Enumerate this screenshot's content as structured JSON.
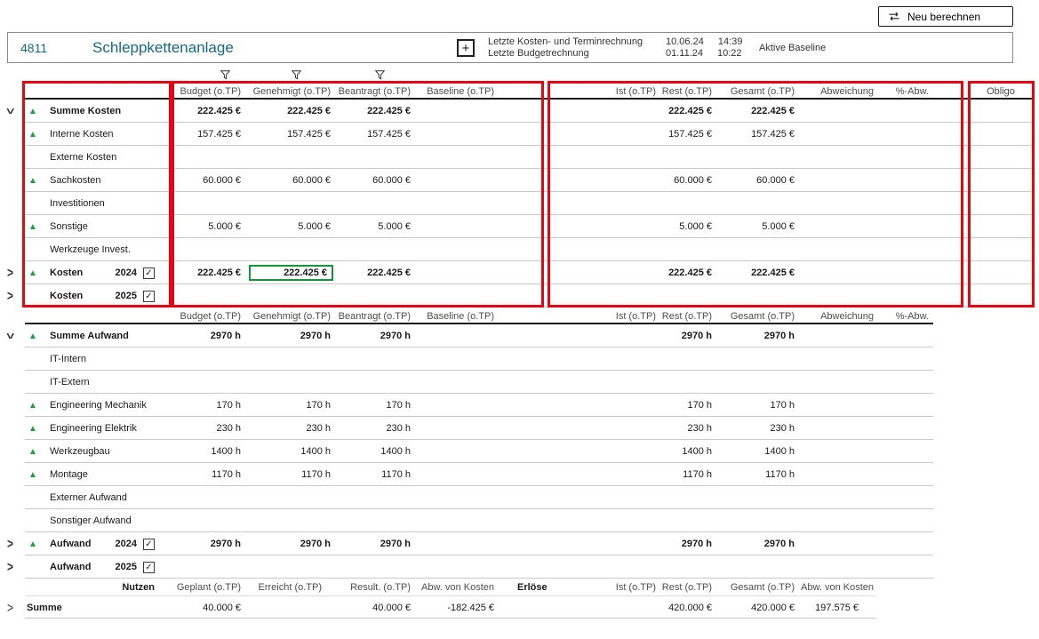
{
  "toolbar": {
    "recalc_button_label": "Neu berechnen"
  },
  "project": {
    "number": "4811",
    "title": "Schleppkettenanlage",
    "add_button": "+",
    "info": [
      {
        "label": "Letzte Kosten- und Terminrechnung",
        "date": "10.06.24",
        "time": "14:39"
      },
      {
        "label": "Letzte Budgetrechnung",
        "date": "01.11.24",
        "time": "10:22"
      }
    ],
    "baseline": "Aktive Baseline"
  },
  "icons": {
    "recalculate": "sync-arrows",
    "filter": "funnel",
    "trend_up": "▲",
    "chevron": ">",
    "checkmark": "✓",
    "add": "+"
  },
  "colors": {
    "title_teal": "#16697e",
    "trend_green": "#1ba13c",
    "annotation_red": "#e30613",
    "selection_green": "#18953a"
  },
  "kosten": {
    "headers": [
      "Budget (o.TP)",
      "Genehmigt (o.TP)",
      "Beantragt (o.TP)",
      "Baseline (o.TP)",
      "Ist (o.TP)",
      "Rest (o.TP)",
      "Gesamt (o.TP)",
      "Abweichung",
      "%-Abw.",
      "Obligo"
    ],
    "rows": [
      {
        "label": "Summe Kosten",
        "bold": true,
        "trend": true,
        "expand": "open",
        "values": [
          "222.425 €",
          "222.425 €",
          "222.425 €",
          "",
          "",
          "222.425 €",
          "222.425 €",
          "",
          "",
          ""
        ]
      },
      {
        "label": "Interne Kosten",
        "trend": true,
        "values": [
          "157.425 €",
          "157.425 €",
          "157.425 €",
          "",
          "",
          "157.425 €",
          "157.425 €",
          "",
          "",
          ""
        ]
      },
      {
        "label": "Externe Kosten"
      },
      {
        "label": "Sachkosten",
        "trend": true,
        "values": [
          "60.000 €",
          "60.000 €",
          "60.000 €",
          "",
          "",
          "60.000 €",
          "60.000 €",
          "",
          "",
          ""
        ]
      },
      {
        "label": "Investitionen"
      },
      {
        "label": "Sonstige",
        "trend": true,
        "values": [
          "5.000 €",
          "5.000 €",
          "5.000 €",
          "",
          "",
          "5.000 €",
          "5.000 €",
          "",
          "",
          ""
        ]
      },
      {
        "label": "Werkzeuge Invest."
      },
      {
        "label": "Kosten",
        "year": "2024",
        "checked": true,
        "bold": true,
        "trend": true,
        "expand": "closed",
        "selected": 1,
        "values": [
          "222.425 €",
          "222.425 €",
          "222.425 €",
          "",
          "",
          "222.425 €",
          "222.425 €",
          "",
          "",
          ""
        ]
      },
      {
        "label": "Kosten",
        "year": "2025",
        "checked": true,
        "bold": true,
        "expand": "closed"
      }
    ]
  },
  "aufwand": {
    "headers": [
      "Budget (o.TP)",
      "Genehmigt (o.TP)",
      "Beantragt (o.TP)",
      "Baseline (o.TP)",
      "Ist (o.TP)",
      "Rest (o.TP)",
      "Gesamt (o.TP)",
      "Abweichung",
      "%-Abw.",
      ""
    ],
    "rows": [
      {
        "label": "Summe Aufwand",
        "bold": true,
        "trend": true,
        "expand": "open",
        "values": [
          "2970 h",
          "2970 h",
          "2970 h",
          "",
          "",
          "2970 h",
          "2970 h",
          "",
          "",
          ""
        ]
      },
      {
        "label": "IT-Intern"
      },
      {
        "label": "IT-Extern"
      },
      {
        "label": "Engineering Mechanik",
        "trend": true,
        "values": [
          "170 h",
          "170 h",
          "170 h",
          "",
          "",
          "170 h",
          "170 h",
          "",
          "",
          ""
        ]
      },
      {
        "label": "Engineering Elektrik",
        "trend": true,
        "values": [
          "230 h",
          "230 h",
          "230 h",
          "",
          "",
          "230 h",
          "230 h",
          "",
          "",
          ""
        ]
      },
      {
        "label": "Werkzeugbau",
        "trend": true,
        "values": [
          "1400 h",
          "1400 h",
          "1400 h",
          "",
          "",
          "1400 h",
          "1400 h",
          "",
          "",
          ""
        ]
      },
      {
        "label": "Montage",
        "trend": true,
        "values": [
          "1170 h",
          "1170 h",
          "1170 h",
          "",
          "",
          "1170 h",
          "1170 h",
          "",
          "",
          ""
        ]
      },
      {
        "label": "Externer Aufwand"
      },
      {
        "label": "Sonstiger Aufwand"
      },
      {
        "label": "Aufwand",
        "year": "2024",
        "checked": true,
        "bold": true,
        "trend": true,
        "expand": "closed",
        "values": [
          "2970 h",
          "2970 h",
          "2970 h",
          "",
          "",
          "2970 h",
          "2970 h",
          "",
          "",
          ""
        ]
      },
      {
        "label": "Aufwand",
        "year": "2025",
        "checked": true,
        "bold": true,
        "expand": "closed"
      }
    ]
  },
  "nutzen": {
    "headers": [
      "Nutzen",
      "Geplant (o.TP)",
      "Erreicht (o.TP)",
      "Result. (o.TP)",
      "Abw. von Kosten",
      "Erlöse",
      "Ist (o.TP)",
      "Rest (o.TP)",
      "Gesamt (o.TP)",
      "Abw. von Kosten"
    ],
    "row": {
      "label": "Summe",
      "expand": "closed",
      "values": [
        "40.000 €",
        "",
        "40.000 €",
        "-182.425 €",
        "",
        "",
        "420.000 €",
        "420.000 €",
        "197.575 €"
      ]
    }
  }
}
